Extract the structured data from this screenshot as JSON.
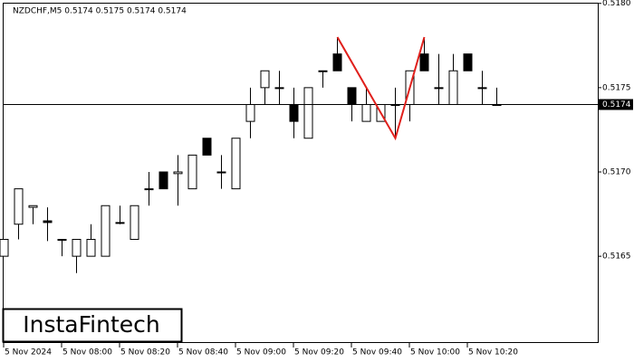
{
  "chart_data": {
    "type": "candlestick",
    "title": "NZDCHF,M5  0.5174 0.5175 0.5174 0.5174",
    "categories": [
      "5 Nov 2024",
      null,
      null,
      null,
      "5 Nov 08:00",
      null,
      null,
      null,
      "5 Nov 08:20",
      null,
      null,
      null,
      "5 Nov 08:40",
      null,
      null,
      null,
      "5 Nov 09:00",
      null,
      null,
      null,
      "5 Nov 09:20",
      null,
      null,
      null,
      "5 Nov 09:40",
      null,
      null,
      null,
      "5 Nov 10:00",
      null,
      null,
      null,
      "5 Nov 10:20",
      null,
      null
    ],
    "open": [
      0.5165,
      0.51669,
      0.51679,
      0.51671,
      0.5166,
      0.5165,
      0.5165,
      0.5165,
      0.5167,
      0.5166,
      0.5169,
      0.517,
      0.51699,
      0.5169,
      0.5172,
      0.517,
      0.5169,
      0.5173,
      0.5175,
      0.5175,
      0.5174,
      0.5172,
      0.5176,
      0.5177,
      0.5175,
      0.5173,
      0.5173,
      0.5174,
      0.5174,
      0.5177,
      0.5175,
      0.5174,
      0.5177,
      0.5175,
      0.5174
    ],
    "high": [
      0.5166,
      0.5169,
      0.5168,
      0.51679,
      0.5166,
      0.5166,
      0.51669,
      0.5168,
      0.5168,
      0.5168,
      0.517,
      0.517,
      0.5171,
      0.5171,
      0.5172,
      0.5171,
      0.5172,
      0.5175,
      0.5176,
      0.5176,
      0.5175,
      0.5175,
      0.5176,
      0.5178,
      0.5175,
      0.5175,
      0.5174,
      0.5175,
      0.5176,
      0.5178,
      0.5177,
      0.5177,
      0.5177,
      0.5176,
      0.5175
    ],
    "low": [
      0.5165,
      0.5166,
      0.51669,
      0.51659,
      0.5165,
      0.5164,
      0.5165,
      0.5165,
      0.51669,
      0.5166,
      0.5168,
      0.5169,
      0.5168,
      0.5169,
      0.5171,
      0.5169,
      0.5169,
      0.5172,
      0.5174,
      0.5174,
      0.5172,
      0.5172,
      0.5175,
      0.5176,
      0.5173,
      0.5173,
      0.5173,
      0.5172,
      0.5173,
      0.5176,
      0.5174,
      0.5174,
      0.5176,
      0.5174,
      0.5174
    ],
    "close": [
      0.5166,
      0.5169,
      0.5168,
      0.5167,
      0.5166,
      0.5166,
      0.5166,
      0.5168,
      0.5167,
      0.5168,
      0.5169,
      0.5169,
      0.517,
      0.5171,
      0.5171,
      0.517,
      0.5172,
      0.5174,
      0.5176,
      0.5175,
      0.5173,
      0.5175,
      0.5176,
      0.5176,
      0.5174,
      0.5174,
      0.5174,
      0.5174,
      0.5176,
      0.5176,
      0.5175,
      0.5176,
      0.5176,
      0.5175,
      0.5174
    ],
    "ylim": [
      0.51598,
      0.51802
    ],
    "yticks": [
      {
        "value": 0.518,
        "label": "0.5180"
      },
      0.5175,
      {
        "value": 0.517,
        "label": "0.5170"
      },
      0.5165
    ],
    "current_price": 0.5174,
    "pattern": {
      "color": "#e0201c",
      "x": [
        23,
        27,
        29
      ],
      "y": [
        0.5178,
        0.5172,
        0.5178
      ]
    },
    "watermark": "InstaFintech"
  }
}
